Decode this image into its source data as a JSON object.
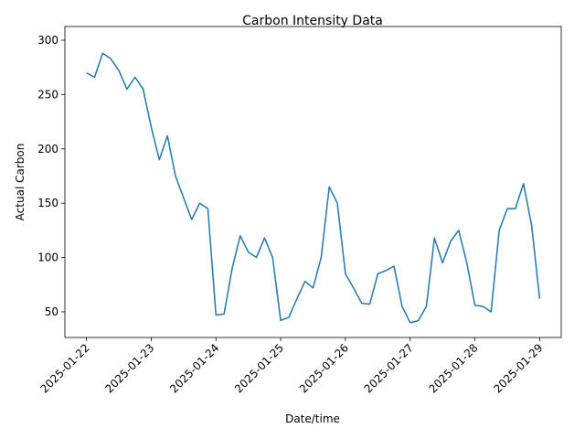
{
  "chart_data": {
    "type": "line",
    "title": "Carbon Intensity Data",
    "x_label": "Date/time",
    "y_label": "Actual Carbon",
    "x": [
      "2025-01-22T00:00",
      "2025-01-22T03:00",
      "2025-01-22T06:00",
      "2025-01-22T09:00",
      "2025-01-22T12:00",
      "2025-01-22T15:00",
      "2025-01-22T18:00",
      "2025-01-22T21:00",
      "2025-01-23T00:00",
      "2025-01-23T03:00",
      "2025-01-23T06:00",
      "2025-01-23T09:00",
      "2025-01-23T12:00",
      "2025-01-23T15:00",
      "2025-01-23T18:00",
      "2025-01-23T21:00",
      "2025-01-24T00:00",
      "2025-01-24T03:00",
      "2025-01-24T06:00",
      "2025-01-24T09:00",
      "2025-01-24T12:00",
      "2025-01-24T15:00",
      "2025-01-24T18:00",
      "2025-01-24T21:00",
      "2025-01-25T00:00",
      "2025-01-25T03:00",
      "2025-01-25T06:00",
      "2025-01-25T09:00",
      "2025-01-25T12:00",
      "2025-01-25T15:00",
      "2025-01-25T18:00",
      "2025-01-25T21:00",
      "2025-01-26T00:00",
      "2025-01-26T03:00",
      "2025-01-26T06:00",
      "2025-01-26T09:00",
      "2025-01-26T12:00",
      "2025-01-26T15:00",
      "2025-01-26T18:00",
      "2025-01-26T21:00",
      "2025-01-27T00:00",
      "2025-01-27T03:00",
      "2025-01-27T06:00",
      "2025-01-27T09:00",
      "2025-01-27T12:00",
      "2025-01-27T15:00",
      "2025-01-27T18:00",
      "2025-01-27T21:00",
      "2025-01-28T00:00",
      "2025-01-28T03:00",
      "2025-01-28T06:00",
      "2025-01-28T09:00",
      "2025-01-28T12:00",
      "2025-01-28T15:00",
      "2025-01-28T18:00",
      "2025-01-28T21:00",
      "2025-01-29T00:00"
    ],
    "series": [
      {
        "name": "Actual Carbon",
        "color": "#1f77b4",
        "values": [
          270,
          266,
          288,
          283,
          272,
          255,
          266,
          255,
          220,
          190,
          212,
          175,
          155,
          135,
          150,
          145,
          47,
          48,
          90,
          120,
          105,
          100,
          118,
          100,
          42,
          45,
          62,
          78,
          72,
          100,
          165,
          150,
          85,
          72,
          58,
          57,
          85,
          88,
          92,
          55,
          40,
          42,
          55,
          118,
          95,
          115,
          125,
          95,
          56,
          55,
          50,
          125,
          145,
          145,
          168,
          130,
          62
        ]
      }
    ],
    "xlim": [
      "2025-01-21T16:00",
      "2025-01-29T08:00"
    ],
    "xticks": [
      "2025-01-22",
      "2025-01-23",
      "2025-01-24",
      "2025-01-25",
      "2025-01-26",
      "2025-01-27",
      "2025-01-28",
      "2025-01-29"
    ],
    "ylim": [
      26.4,
      312.6
    ],
    "yticks": [
      50,
      100,
      150,
      200,
      250,
      300
    ]
  }
}
